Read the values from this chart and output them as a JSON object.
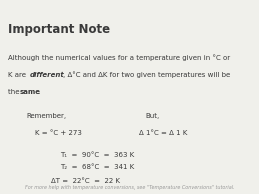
{
  "bg_color": "#f0f0eb",
  "text_color": "#3a3a3a",
  "title": "Important Note",
  "line1": "Although the numerical values for a temperature given in °C or",
  "line2a": "K are ",
  "line2b": "different",
  "line2c": ", Δ°C and ΔK for two given temperatures will be",
  "line3a": "the ",
  "line3b": "same",
  "line3c": ".",
  "remember": "Remember,",
  "but": "But,",
  "formula1": "K = °C + 273",
  "formula2": "Δ 1°C = Δ 1 K",
  "t1": "T₁  =  90°C  =  363 K",
  "t2": "T₂  =  68°C  =  341 K",
  "delta": "ΔT =  22°C  =  22 K",
  "footer": "For more help with temperature conversions, see \"Temperature Conversions\" tutorial.",
  "title_fs": 8.5,
  "body_fs": 5.0,
  "small_fs": 3.5
}
